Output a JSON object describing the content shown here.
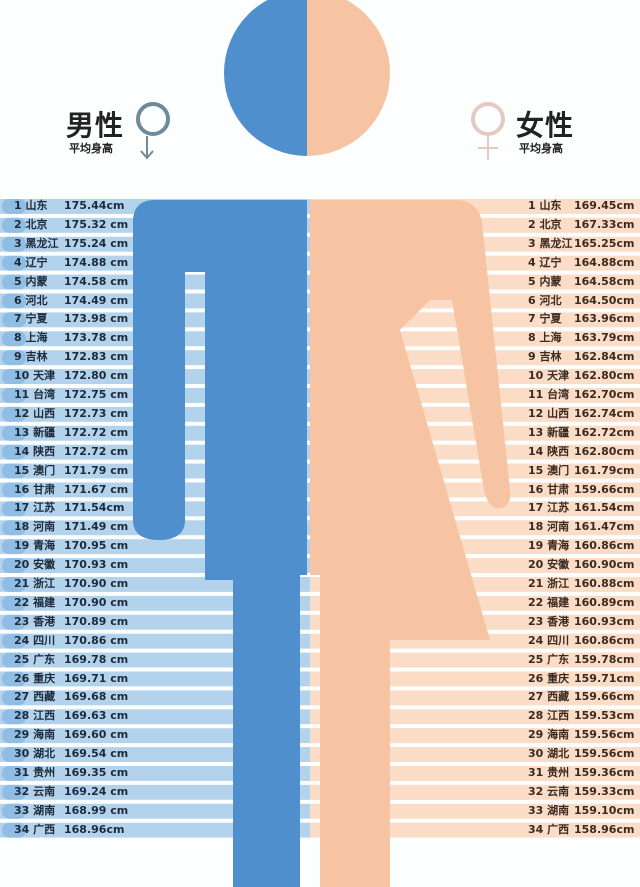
{
  "colors": {
    "male": "#4f8fcd",
    "female": "#f6c4a2",
    "male_stripe": "#b3d2ec",
    "male_tab": "#8fbde3",
    "female_stripe": "#fadcc7"
  },
  "header": {
    "male_title": "男性",
    "male_subtitle": "平均身高",
    "male_icon": "male-symbol-icon",
    "female_title": "女性",
    "female_subtitle": "平均身高",
    "female_icon": "female-symbol-icon"
  },
  "chart_data": {
    "type": "table",
    "unit": "cm",
    "series": [
      {
        "name": "男性",
        "rows": [
          {
            "rank": "1",
            "region": "山东",
            "label": "175.44cm",
            "value": 175.44
          },
          {
            "rank": "2",
            "region": "北京",
            "label": "175.32 cm",
            "value": 175.32
          },
          {
            "rank": "3",
            "region": "黑龙江",
            "label": "175.24 cm",
            "value": 175.24
          },
          {
            "rank": "4",
            "region": "辽宁",
            "label": "174.88 cm",
            "value": 174.88
          },
          {
            "rank": "5",
            "region": "内蒙",
            "label": "174.58 cm",
            "value": 174.58
          },
          {
            "rank": "6",
            "region": "河北",
            "label": "174.49 cm",
            "value": 174.49
          },
          {
            "rank": "7",
            "region": "宁夏",
            "label": "173.98 cm",
            "value": 173.98
          },
          {
            "rank": "8",
            "region": "上海",
            "label": "173.78 cm",
            "value": 173.78
          },
          {
            "rank": "9",
            "region": "吉林",
            "label": "172.83 cm",
            "value": 172.83
          },
          {
            "rank": "10",
            "region": "天津",
            "label": "172.80 cm",
            "value": 172.8
          },
          {
            "rank": "11",
            "region": "台湾",
            "label": "172.75 cm",
            "value": 172.75
          },
          {
            "rank": "12",
            "region": "山西",
            "label": "172.73 cm",
            "value": 172.73
          },
          {
            "rank": "13",
            "region": "新疆",
            "label": "172.72 cm",
            "value": 172.72
          },
          {
            "rank": "14",
            "region": "陕西",
            "label": "172.72 cm",
            "value": 172.72
          },
          {
            "rank": "15",
            "region": "澳门",
            "label": "171.79 cm",
            "value": 171.79
          },
          {
            "rank": "16",
            "region": "甘肃",
            "label": "171.67 cm",
            "value": 171.67
          },
          {
            "rank": "17",
            "region": "江苏",
            "label": "171.54cm",
            "value": 171.54
          },
          {
            "rank": "18",
            "region": "河南",
            "label": "171.49 cm",
            "value": 171.49
          },
          {
            "rank": "19",
            "region": "青海",
            "label": "170.95 cm",
            "value": 170.95
          },
          {
            "rank": "20",
            "region": "安徽",
            "label": "170.93 cm",
            "value": 170.93
          },
          {
            "rank": "21",
            "region": "浙江",
            "label": "170.90 cm",
            "value": 170.9
          },
          {
            "rank": "22",
            "region": "福建",
            "label": "170.90 cm",
            "value": 170.9
          },
          {
            "rank": "23",
            "region": "香港",
            "label": "170.89 cm",
            "value": 170.89
          },
          {
            "rank": "24",
            "region": "四川",
            "label": "170.86 cm",
            "value": 170.86
          },
          {
            "rank": "25",
            "region": "广东",
            "label": "169.78 cm",
            "value": 169.78
          },
          {
            "rank": "26",
            "region": "重庆",
            "label": "169.71 cm",
            "value": 169.71
          },
          {
            "rank": "27",
            "region": "西藏",
            "label": "169.68 cm",
            "value": 169.68
          },
          {
            "rank": "28",
            "region": "江西",
            "label": "169.63 cm",
            "value": 169.63
          },
          {
            "rank": "29",
            "region": "海南",
            "label": "169.60 cm",
            "value": 169.6
          },
          {
            "rank": "30",
            "region": "湖北",
            "label": "169.54 cm",
            "value": 169.54
          },
          {
            "rank": "31",
            "region": "贵州",
            "label": "169.35 cm",
            "value": 169.35
          },
          {
            "rank": "32",
            "region": "云南",
            "label": "169.24 cm",
            "value": 169.24
          },
          {
            "rank": "33",
            "region": "湖南",
            "label": "168.99 cm",
            "value": 168.99
          },
          {
            "rank": "34",
            "region": "广西",
            "label": "168.96cm",
            "value": 168.96
          }
        ]
      },
      {
        "name": "女性",
        "rows": [
          {
            "rank": "1",
            "region": "山东",
            "label": "169.45cm",
            "value": 169.45
          },
          {
            "rank": "2",
            "region": "北京",
            "label": "167.33cm",
            "value": 167.33
          },
          {
            "rank": "3",
            "region": "黑龙江",
            "label": "165.25cm",
            "value": 165.25
          },
          {
            "rank": "4",
            "region": "辽宁",
            "label": "164.88cm",
            "value": 164.88
          },
          {
            "rank": "5",
            "region": "内蒙",
            "label": "164.58cm",
            "value": 164.58
          },
          {
            "rank": "6",
            "region": "河北",
            "label": "164.50cm",
            "value": 164.5
          },
          {
            "rank": "7",
            "region": "宁夏",
            "label": "163.96cm",
            "value": 163.96
          },
          {
            "rank": "8",
            "region": "上海",
            "label": "163.79cm",
            "value": 163.79
          },
          {
            "rank": "9",
            "region": "吉林",
            "label": "162.84cm",
            "value": 162.84
          },
          {
            "rank": "10",
            "region": "天津",
            "label": "162.80cm",
            "value": 162.8
          },
          {
            "rank": "11",
            "region": "台湾",
            "label": "162.70cm",
            "value": 162.7
          },
          {
            "rank": "12",
            "region": "山西",
            "label": "162.74cm",
            "value": 162.74
          },
          {
            "rank": "13",
            "region": "新疆",
            "label": "162.72cm",
            "value": 162.72
          },
          {
            "rank": "14",
            "region": "陕西",
            "label": "162.80cm",
            "value": 162.8
          },
          {
            "rank": "15",
            "region": "澳门",
            "label": "161.79cm",
            "value": 161.79
          },
          {
            "rank": "16",
            "region": "甘肃",
            "label": "159.66cm",
            "value": 159.66
          },
          {
            "rank": "17",
            "region": "江苏",
            "label": "161.54cm",
            "value": 161.54
          },
          {
            "rank": "18",
            "region": "河南",
            "label": "161.47cm",
            "value": 161.47
          },
          {
            "rank": "19",
            "region": "青海",
            "label": "160.86cm",
            "value": 160.86
          },
          {
            "rank": "20",
            "region": "安徽",
            "label": "160.90cm",
            "value": 160.9
          },
          {
            "rank": "21",
            "region": "浙江",
            "label": "160.88cm",
            "value": 160.88
          },
          {
            "rank": "22",
            "region": "福建",
            "label": "160.89cm",
            "value": 160.89
          },
          {
            "rank": "23",
            "region": "香港",
            "label": "160.93cm",
            "value": 160.93
          },
          {
            "rank": "24",
            "region": "四川",
            "label": "160.86cm",
            "value": 160.86
          },
          {
            "rank": "25",
            "region": "广东",
            "label": "159.78cm",
            "value": 159.78
          },
          {
            "rank": "26",
            "region": "重庆",
            "label": "159.71cm",
            "value": 159.71
          },
          {
            "rank": "27",
            "region": "西藏",
            "label": "159.66cm",
            "value": 159.66
          },
          {
            "rank": "28",
            "region": "江西",
            "label": "159.53cm",
            "value": 159.53
          },
          {
            "rank": "29",
            "region": "海南",
            "label": "159.56cm",
            "value": 159.56
          },
          {
            "rank": "30",
            "region": "湖北",
            "label": "159.56cm",
            "value": 159.56
          },
          {
            "rank": "31",
            "region": "贵州",
            "label": "159.36cm",
            "value": 159.36
          },
          {
            "rank": "32",
            "region": "云南",
            "label": "159.33cm",
            "value": 159.33
          },
          {
            "rank": "33",
            "region": "湖南",
            "label": "159.10cm",
            "value": 159.1
          },
          {
            "rank": "34",
            "region": "广西",
            "label": "158.96cm",
            "value": 158.96
          }
        ]
      }
    ]
  }
}
